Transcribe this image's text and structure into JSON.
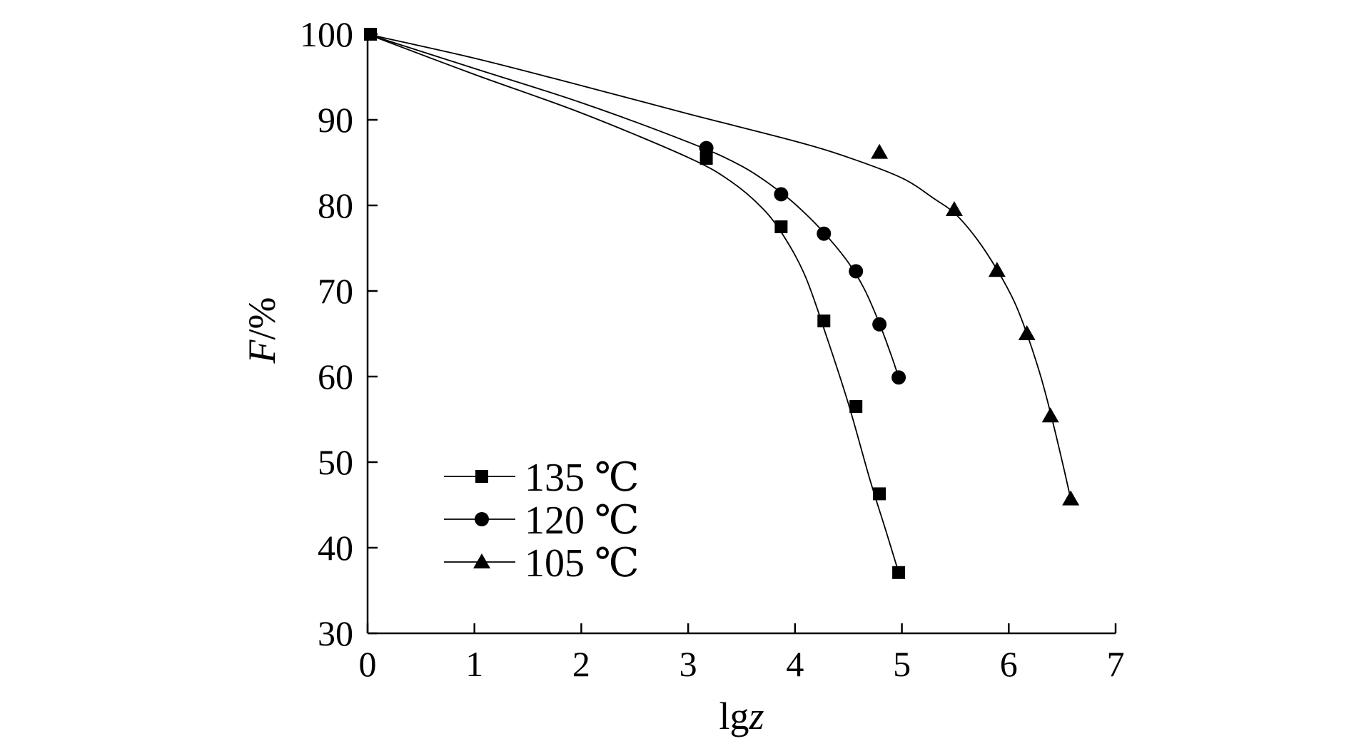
{
  "chart_data": {
    "type": "scatter",
    "title": "",
    "xlabel": "lgz",
    "xlabel_parts": [
      "lg",
      "z"
    ],
    "ylabel": "F/%",
    "ylabel_parts": [
      "F",
      "/%"
    ],
    "xlim": [
      0,
      7
    ],
    "ylim": [
      30,
      100
    ],
    "xticks": [
      0,
      1,
      2,
      3,
      4,
      5,
      6,
      7
    ],
    "yticks": [
      30,
      40,
      50,
      60,
      70,
      80,
      90,
      100
    ],
    "xtick_labels": [
      "0",
      "1",
      "2",
      "3",
      "4",
      "5",
      "6",
      "7"
    ],
    "ytick_labels": [
      "30",
      "40",
      "50",
      "60",
      "70",
      "80",
      "90",
      "100"
    ],
    "grid": false,
    "legend_position": "bottom-left",
    "series": [
      {
        "name": "135 ℃",
        "marker": "square",
        "color": "#000000",
        "points": [
          [
            0,
            100
          ],
          [
            3.17,
            85.5
          ],
          [
            3.87,
            77.5
          ],
          [
            4.27,
            66.5
          ],
          [
            4.57,
            56.5
          ],
          [
            4.79,
            46.3
          ],
          [
            4.97,
            37.1
          ]
        ],
        "curve": [
          [
            0,
            100
          ],
          [
            1.0,
            95.3
          ],
          [
            2.0,
            90.8
          ],
          [
            3.0,
            85.6
          ],
          [
            3.4,
            82.8
          ],
          [
            3.7,
            79.6
          ],
          [
            3.9,
            76.3
          ],
          [
            4.1,
            71.6
          ],
          [
            4.3,
            64.5
          ],
          [
            4.5,
            56.8
          ],
          [
            4.7,
            48.0
          ],
          [
            4.85,
            42.0
          ],
          [
            4.97,
            37.1
          ]
        ]
      },
      {
        "name": "120 ℃",
        "marker": "circle",
        "color": "#000000",
        "points": [
          [
            0,
            100
          ],
          [
            3.17,
            86.7
          ],
          [
            3.87,
            81.3
          ],
          [
            4.27,
            76.7
          ],
          [
            4.57,
            72.3
          ],
          [
            4.79,
            66.1
          ],
          [
            4.97,
            59.9
          ]
        ],
        "curve": [
          [
            0,
            100
          ],
          [
            1.0,
            96.0
          ],
          [
            2.0,
            92.0
          ],
          [
            3.0,
            87.4
          ],
          [
            3.5,
            84.6
          ],
          [
            3.87,
            81.5
          ],
          [
            4.1,
            79.0
          ],
          [
            4.3,
            76.4
          ],
          [
            4.5,
            73.3
          ],
          [
            4.65,
            70.2
          ],
          [
            4.79,
            66.2
          ],
          [
            4.9,
            62.5
          ],
          [
            4.97,
            59.9
          ]
        ]
      },
      {
        "name": "105 ℃",
        "marker": "triangle",
        "color": "#000000",
        "points": [
          [
            0,
            100
          ],
          [
            4.79,
            86.2
          ],
          [
            5.49,
            79.5
          ],
          [
            5.89,
            72.4
          ],
          [
            6.17,
            65.0
          ],
          [
            6.39,
            55.4
          ],
          [
            6.58,
            45.7
          ]
        ],
        "curve": [
          [
            0,
            100
          ],
          [
            1.0,
            97.2
          ],
          [
            2.0,
            94.0
          ],
          [
            3.0,
            90.7
          ],
          [
            4.0,
            87.5
          ],
          [
            4.5,
            85.6
          ],
          [
            5.0,
            83.2
          ],
          [
            5.3,
            80.8
          ],
          [
            5.5,
            79.0
          ],
          [
            5.7,
            76.1
          ],
          [
            5.89,
            72.5
          ],
          [
            6.05,
            68.8
          ],
          [
            6.17,
            65.0
          ],
          [
            6.3,
            60.0
          ],
          [
            6.4,
            55.3
          ],
          [
            6.5,
            50.1
          ],
          [
            6.58,
            45.7
          ]
        ]
      }
    ]
  }
}
